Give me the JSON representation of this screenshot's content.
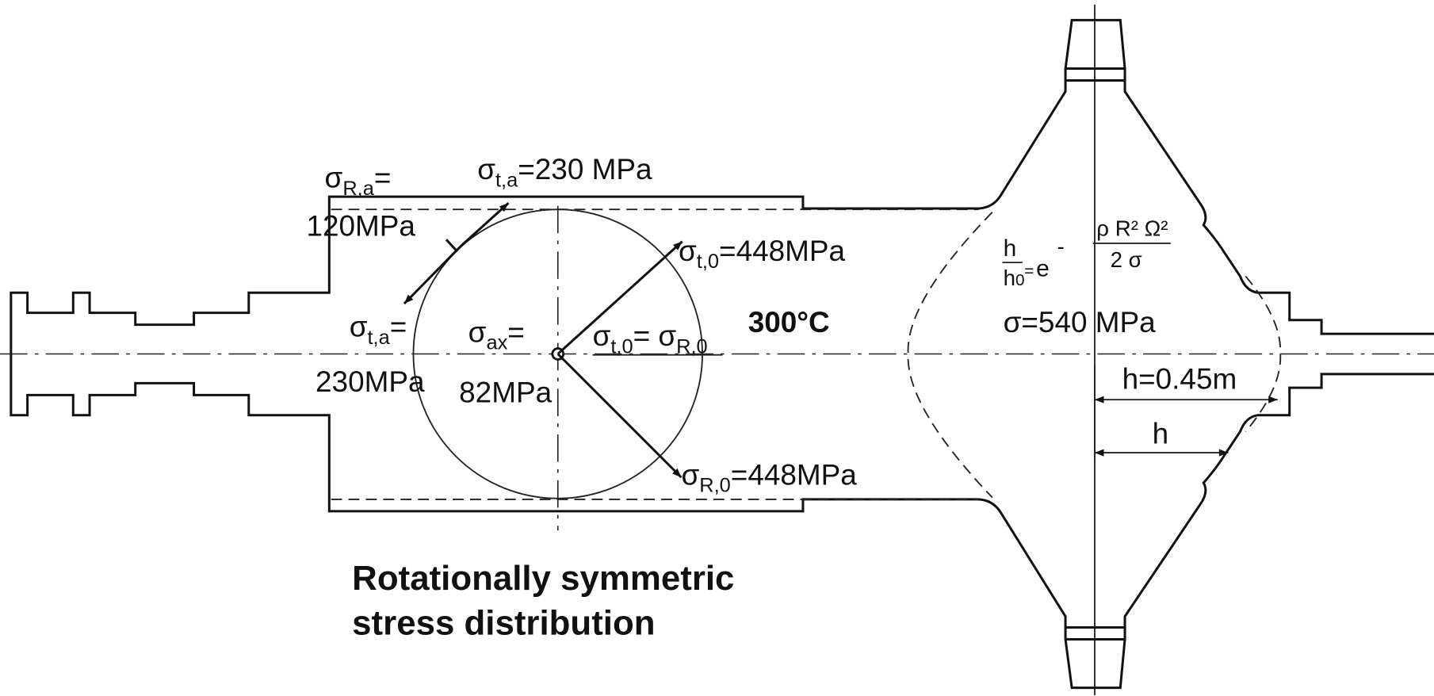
{
  "stress_labels": {
    "radial_outer": {
      "symbol": "σ",
      "subscript": "R,a",
      "suffix": "=",
      "value": "120MPa"
    },
    "tangential_outer_top": {
      "symbol": "σ",
      "subscript": "t,a",
      "suffix": "=230 MPa"
    },
    "tangential_center_top": {
      "symbol": "σ",
      "subscript": "t,0",
      "suffix": "=448MPa"
    },
    "tangential_outer": {
      "symbol": "σ",
      "subscript": "t,a",
      "suffix": "=",
      "value": "230MPa"
    },
    "axial": {
      "symbol": "σ",
      "subscript": "ax",
      "suffix": "=",
      "value": "82MPa"
    },
    "center_equality": {
      "symbol": "σ",
      "subscript": "t,0",
      "suffix": "= σ",
      "subscript2": "R,0"
    },
    "radial_center": {
      "symbol": "σ",
      "subscript": "R,0",
      "suffix": "=448MPa"
    }
  },
  "temperature": "300°C",
  "formula": {
    "numerator": "h",
    "denominator": "h",
    "denominator_subscript": "0",
    "equals": "=",
    "base": "e",
    "exponent_sign": "-",
    "exponent_numerator": "ρ R² Ω²",
    "exponent_denominator": "2 σ"
  },
  "disk_stress": "σ=540 MPa",
  "dimension_h_max": "h=0.45m",
  "dimension_h": "h",
  "caption": [
    "Rotationally symmetric",
    "stress distribution"
  ]
}
